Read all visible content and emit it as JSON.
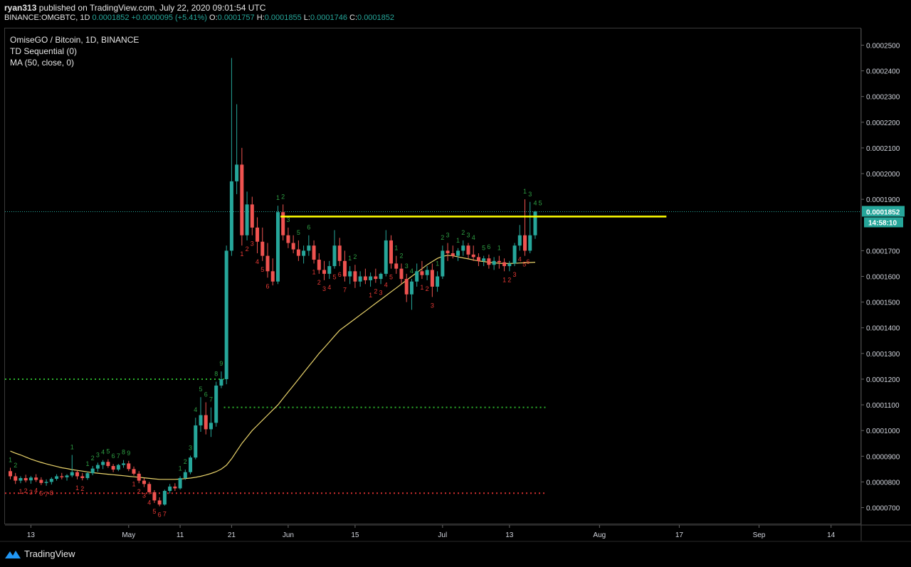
{
  "header": {
    "publisher": "ryan313",
    "published_text": "published on TradingView.com, July 22, 2020 09:01:54 UTC",
    "symbol": "BINANCE:OMGBTC, 1D",
    "last": "0.0001852",
    "change": "+0.0000095 (+5.41%)",
    "o_label": "O:",
    "o_val": "0.0001757",
    "h_label": "H:",
    "h_val": "0.0001855",
    "l_label": "L:",
    "l_val": "0.0001746",
    "c_label": "C:",
    "c_val": "0.0001852"
  },
  "legend": {
    "title": "OmiseGO / Bitcoin, 1D, BINANCE",
    "indicator1": "TD Sequential (0)",
    "indicator2": "MA (50, close, 0)"
  },
  "price_axis": {
    "ticks": [
      "0.0002500",
      "0.0002400",
      "0.0002300",
      "0.0002200",
      "0.0002100",
      "0.0002000",
      "0.0001900",
      "0.0001700",
      "0.0001600",
      "0.0001500",
      "0.0001400",
      "0.0001300",
      "0.0001200",
      "0.0001100",
      "0.0001000",
      "0.0000900",
      "0.0000800",
      "0.0000700"
    ],
    "last_price_tag": "0.0001852",
    "countdown_tag": "14:58:10"
  },
  "time_axis": {
    "ticks": [
      "13",
      "May",
      "11",
      "21",
      "Jun",
      "15",
      "Jul",
      "13",
      "Aug",
      "17",
      "Sep",
      "14"
    ]
  },
  "brand": {
    "name": "TradingView"
  },
  "colors": {
    "up": "#26a69a",
    "down": "#ef5350",
    "ma": "#e9d36b",
    "resistance": "#ffff00",
    "green_dot": "#2db32d",
    "red_dot": "#d32f2f",
    "td_green": "#2e9e43",
    "td_red": "#e53935"
  },
  "chart_data": {
    "type": "candlestick",
    "title": "OmiseGO / Bitcoin, 1D, BINANCE",
    "ylim": [
      6.35e-05,
      0.0002565
    ],
    "resistance_level": 0.0001833,
    "green_support_1": 0.00012,
    "green_support_2": 0.000109,
    "red_support": 7.56e-05,
    "last_price": 0.0001852,
    "ma_period": 50,
    "candles": [
      [
        8.42e-05,
        8.55e-05,
        8.1e-05,
        8.22e-05
      ],
      [
        8.22e-05,
        8.35e-05,
        7.92e-05,
        8.05e-05
      ],
      [
        8.05e-05,
        8.22e-05,
        7.95e-05,
        8.15e-05
      ],
      [
        8.15e-05,
        8.28e-05,
        7.98e-05,
        8.06e-05
      ],
      [
        8.06e-05,
        8.23e-05,
        7.93e-05,
        8.17e-05
      ],
      [
        8.17e-05,
        8.3e-05,
        8e-05,
        8.08e-05
      ],
      [
        8.08e-05,
        8.18e-05,
        7.88e-05,
        7.96e-05
      ],
      [
        7.96e-05,
        8.1e-05,
        7.85e-05,
        8e-05
      ],
      [
        8e-05,
        8.18e-05,
        7.9e-05,
        8.12e-05
      ],
      [
        8.12e-05,
        8.3e-05,
        8.05e-05,
        8.22e-05
      ],
      [
        8.22e-05,
        8.35e-05,
        8.1e-05,
        8.18e-05
      ],
      [
        8.18e-05,
        8.3e-05,
        8.05e-05,
        8.25e-05
      ],
      [
        8.25e-05,
        9.05e-05,
        8.18e-05,
        8.38e-05
      ],
      [
        8.38e-05,
        8.45e-05,
        8.1e-05,
        8.22e-05
      ],
      [
        8.22e-05,
        8.35e-05,
        8.06e-05,
        8.15e-05
      ],
      [
        8.15e-05,
        8.4e-05,
        8.08e-05,
        8.34e-05
      ],
      [
        8.34e-05,
        8.62e-05,
        8.26e-05,
        8.52e-05
      ],
      [
        8.52e-05,
        8.75e-05,
        8.4e-05,
        8.66e-05
      ],
      [
        8.66e-05,
        8.85e-05,
        8.5e-05,
        8.78e-05
      ],
      [
        8.78e-05,
        8.88e-05,
        8.55e-05,
        8.62e-05
      ],
      [
        8.62e-05,
        8.7e-05,
        8.38e-05,
        8.48e-05
      ],
      [
        8.48e-05,
        8.7e-05,
        8.42e-05,
        8.66e-05
      ],
      [
        8.66e-05,
        8.85e-05,
        8.55e-05,
        8.72e-05
      ],
      [
        8.72e-05,
        8.82e-05,
        8.42e-05,
        8.5e-05
      ],
      [
        8.5e-05,
        8.6e-05,
        8.25e-05,
        8.32e-05
      ],
      [
        8.32e-05,
        8.42e-05,
        7.95e-05,
        8.05e-05
      ],
      [
        8.05e-05,
        8.15e-05,
        7.8e-05,
        7.92e-05
      ],
      [
        7.92e-05,
        8e-05,
        7.52e-05,
        7.6e-05
      ],
      [
        7.6e-05,
        7.68e-05,
        7.18e-05,
        7.28e-05
      ],
      [
        7.28e-05,
        7.4e-05,
        7.05e-05,
        7.12e-05
      ],
      [
        7.12e-05,
        7.7e-05,
        7.08e-05,
        7.65e-05
      ],
      [
        7.65e-05,
        7.92e-05,
        7.55e-05,
        7.82e-05
      ],
      [
        7.82e-05,
        7.95e-05,
        7.65e-05,
        7.75e-05
      ],
      [
        7.75e-05,
        8.22e-05,
        7.7e-05,
        8.15e-05
      ],
      [
        8.15e-05,
        8.48e-05,
        8.08e-05,
        8.38e-05
      ],
      [
        8.38e-05,
        9.02e-05,
        8.3e-05,
        8.95e-05
      ],
      [
        8.95e-05,
        0.000105,
        8.88e-05,
        0.000102
      ],
      [
        0.000102,
        0.000113,
        9.95e-05,
        0.000106
      ],
      [
        0.000106,
        0.000111,
        9.85e-05,
        0.0001005
      ],
      [
        0.0001005,
        0.000109,
        9.75e-05,
        0.000103
      ],
      [
        0.000103,
        0.000119,
        0.0001015,
        0.0001175
      ],
      [
        0.0001175,
        0.000123,
        0.0001165,
        0.00012
      ],
      [
        0.00012,
        0.000172,
        0.000118,
        0.00017
      ],
      [
        0.00017,
        0.000245,
        0.000168,
        0.000197
      ],
      [
        0.000197,
        0.000227,
        0.000192,
        0.0002035
      ],
      [
        0.0002035,
        0.00021,
        0.000172,
        0.000176
      ],
      [
        0.000176,
        0.000193,
        0.000174,
        0.000188
      ],
      [
        0.000188,
        0.000191,
        0.000176,
        0.000179
      ],
      [
        0.000179,
        0.000183,
        0.000169,
        0.0001735
      ],
      [
        0.0001735,
        0.000179,
        0.000166,
        0.000168
      ],
      [
        0.000168,
        0.000173,
        0.0001595,
        0.000162
      ],
      [
        0.000162,
        0.000167,
        0.0001565,
        0.000158
      ],
      [
        0.000158,
        0.0001875,
        0.000157,
        0.000185
      ],
      [
        0.000185,
        0.000188,
        0.000174,
        0.000176
      ],
      [
        0.000176,
        0.000179,
        0.000171,
        0.000173
      ],
      [
        0.000173,
        0.000176,
        0.000169,
        0.0001705
      ],
      [
        0.0001705,
        0.000174,
        0.000166,
        0.000168
      ],
      [
        0.000168,
        0.000172,
        0.000165,
        0.00017
      ],
      [
        0.00017,
        0.000176,
        0.000168,
        0.000172
      ],
      [
        0.000172,
        0.000174,
        0.000165,
        0.0001665
      ],
      [
        0.0001665,
        0.000169,
        0.000161,
        0.0001625
      ],
      [
        0.0001625,
        0.000166,
        0.0001585,
        0.000161
      ],
      [
        0.000161,
        0.000166,
        0.000159,
        0.000164
      ],
      [
        0.000164,
        0.000178,
        0.000163,
        0.000172
      ],
      [
        0.000172,
        0.000175,
        0.000164,
        0.000166
      ],
      [
        0.000166,
        0.00017,
        0.000158,
        0.00016
      ],
      [
        0.00016,
        0.000164,
        0.000157,
        0.000162
      ],
      [
        0.000162,
        0.0001645,
        0.0001555,
        0.000158
      ],
      [
        0.000158,
        0.000162,
        0.000156,
        0.00016
      ],
      [
        0.00016,
        0.000163,
        0.000157,
        0.0001585
      ],
      [
        0.0001585,
        0.0001615,
        0.000156,
        0.00016
      ],
      [
        0.00016,
        0.000163,
        0.0001575,
        0.000159
      ],
      [
        0.000159,
        0.0001615,
        0.000157,
        0.000161
      ],
      [
        0.000161,
        0.000178,
        0.00016,
        0.000174
      ],
      [
        0.000174,
        0.000176,
        0.000163,
        0.000165
      ],
      [
        0.000165,
        0.000168,
        0.000161,
        0.000163
      ],
      [
        0.000163,
        0.000165,
        0.000157,
        0.000159
      ],
      [
        0.000159,
        0.000161,
        0.00015,
        0.000153
      ],
      [
        0.000153,
        0.000159,
        0.000147,
        0.000158
      ],
      [
        0.000158,
        0.000165,
        0.000156,
        0.000162
      ],
      [
        0.000162,
        0.000166,
        0.000159,
        0.0001605
      ],
      [
        0.0001605,
        0.000164,
        0.0001585,
        0.0001625
      ],
      [
        0.0001625,
        0.000165,
        0.000152,
        0.000156
      ],
      [
        0.000156,
        0.000162,
        0.000154,
        0.00016
      ],
      [
        0.00016,
        0.000172,
        0.000159,
        0.00017
      ],
      [
        0.00017,
        0.000173,
        0.000166,
        0.000169
      ],
      [
        0.000169,
        0.000172,
        0.000167,
        0.000168
      ],
      [
        0.000168,
        0.000171,
        0.000166,
        0.00017
      ],
      [
        0.00017,
        0.000174,
        0.000168,
        0.000172
      ],
      [
        0.000172,
        0.000173,
        0.000167,
        0.0001685
      ],
      [
        0.0001685,
        0.000172,
        0.000166,
        0.0001675
      ],
      [
        0.0001675,
        0.000169,
        0.000164,
        0.000166
      ],
      [
        0.000166,
        0.000168,
        0.000164,
        0.000167
      ],
      [
        0.000167,
        0.0001685,
        0.000163,
        0.0001645
      ],
      [
        0.0001645,
        0.0001675,
        0.0001625,
        0.000166
      ],
      [
        0.000166,
        0.000168,
        0.000163,
        0.0001655
      ],
      [
        0.0001655,
        0.000167,
        0.000162,
        0.000164
      ],
      [
        0.000164,
        0.000166,
        0.000162,
        0.000165
      ],
      [
        0.000165,
        0.000173,
        0.000164,
        0.000172
      ],
      [
        0.000172,
        0.00018,
        0.00017,
        0.000176
      ],
      [
        0.000176,
        0.00019,
        0.000168,
        0.00017
      ],
      [
        0.00017,
        0.000189,
        0.000169,
        0.000176
      ],
      [
        0.000176,
        0.0001855,
        0.0001746,
        0.0001852
      ]
    ],
    "ma": [
      9.2e-05,
      9.12e-05,
      9.05e-05,
      8.97e-05,
      8.89e-05,
      8.82e-05,
      8.76e-05,
      8.7e-05,
      8.65e-05,
      8.6e-05,
      8.55e-05,
      8.52e-05,
      8.48e-05,
      8.45e-05,
      8.42e-05,
      8.39e-05,
      8.36e-05,
      8.34e-05,
      8.32e-05,
      8.3e-05,
      8.28e-05,
      8.26e-05,
      8.24e-05,
      8.22e-05,
      8.2e-05,
      8.18e-05,
      8.16e-05,
      8.14e-05,
      8.12e-05,
      8.1e-05,
      8.1e-05,
      8.1e-05,
      8.1e-05,
      8.11e-05,
      8.13e-05,
      8.15e-05,
      8.18e-05,
      8.22e-05,
      8.27e-05,
      8.33e-05,
      8.4e-05,
      8.5e-05,
      8.65e-05,
      8.9e-05,
      9.2e-05,
      9.5e-05,
      9.75e-05,
      0.0001,
      0.000102,
      0.000104,
      0.000106,
      0.000108,
      0.00011,
      0.0001125,
      0.000115,
      0.0001175,
      0.00012,
      0.0001225,
      0.000125,
      0.0001275,
      0.00013,
      0.0001322,
      0.0001345,
      0.0001368,
      0.000139,
      0.0001405,
      0.000142,
      0.0001435,
      0.000145,
      0.0001465,
      0.000148,
      0.0001495,
      0.000151,
      0.0001525,
      0.000154,
      0.0001555,
      0.000157,
      0.0001585,
      0.00016,
      0.0001615,
      0.000163,
      0.0001645,
      0.0001658,
      0.000167,
      0.0001678,
      0.0001682,
      0.000168,
      0.0001676,
      0.0001672,
      0.0001668,
      0.0001664,
      0.000166,
      0.0001658,
      0.0001655,
      0.0001653,
      0.0001651,
      0.000165,
      0.000165,
      0.0001651,
      0.0001652,
      0.0001653,
      0.0001654,
      0.0001655
    ]
  }
}
